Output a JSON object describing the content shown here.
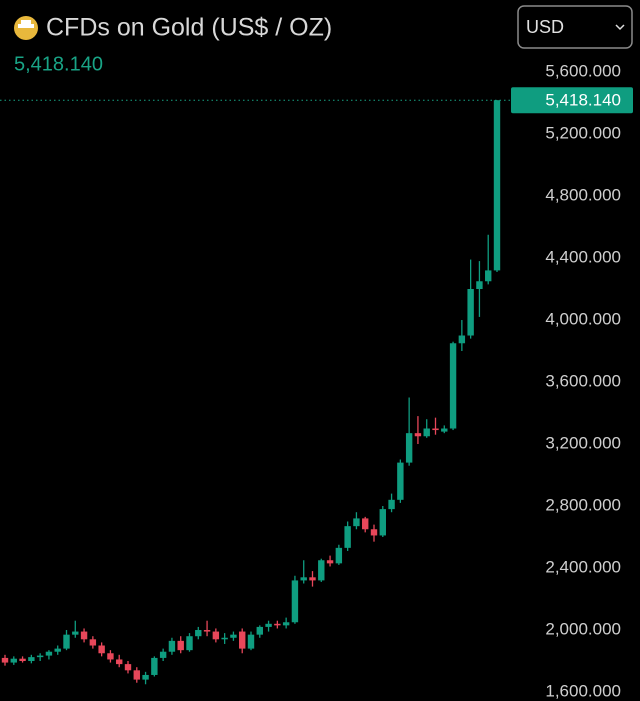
{
  "chart_data": {
    "type": "candlestick",
    "title": "CFDs on Gold (US$ / OZ)",
    "currency": "USD",
    "last_price": {
      "value": 5418.14,
      "label": "5,418.140"
    },
    "up_color": "#0f9d80",
    "down_color": "#e8475a",
    "ylim": [
      1542,
      5742
    ],
    "yticks": [
      {
        "value": 1600,
        "label": "1,600.000"
      },
      {
        "value": 2000,
        "label": "2,000.000"
      },
      {
        "value": 2400,
        "label": "2,400.000"
      },
      {
        "value": 2800,
        "label": "2,800.000"
      },
      {
        "value": 3200,
        "label": "3,200.000"
      },
      {
        "value": 3600,
        "label": "3,600.000"
      },
      {
        "value": 4000,
        "label": "4,000.000"
      },
      {
        "value": 4400,
        "label": "4,400.000"
      },
      {
        "value": 4800,
        "label": "4,800.000"
      },
      {
        "value": 5200,
        "label": "5,200.000"
      },
      {
        "value": 5600,
        "label": "5,600.000"
      }
    ],
    "open": [
      1820,
      1790,
      1815,
      1800,
      1825,
      1835,
      1860,
      1880,
      1970,
      1990,
      1940,
      1900,
      1850,
      1810,
      1780,
      1740,
      1680,
      1710,
      1820,
      1860,
      1930,
      1870,
      1960,
      2000,
      1990,
      1940,
      1950,
      1990,
      1880,
      1970,
      2020,
      2040,
      2030,
      2050,
      2320,
      2340,
      2320,
      2450,
      2430,
      2530,
      2670,
      2720,
      2650,
      2610,
      2780,
      2840,
      3080,
      3270,
      3250,
      3300,
      3280,
      3300,
      3850,
      3900,
      4200,
      4250,
      4320
    ],
    "high": [
      1840,
      1830,
      1830,
      1840,
      1850,
      1870,
      1900,
      2000,
      2060,
      2010,
      1960,
      1920,
      1870,
      1840,
      1800,
      1760,
      1730,
      1830,
      1880,
      1950,
      1960,
      1980,
      2020,
      2060,
      2010,
      1980,
      1990,
      2010,
      1990,
      2030,
      2060,
      2060,
      2080,
      2350,
      2450,
      2380,
      2460,
      2480,
      2550,
      2700,
      2760,
      2730,
      2680,
      2800,
      2880,
      3100,
      3500,
      3380,
      3360,
      3370,
      3320,
      3860,
      4000,
      4390,
      4380,
      4550,
      5418.14
    ],
    "low": [
      1770,
      1775,
      1790,
      1785,
      1800,
      1810,
      1840,
      1870,
      1950,
      1920,
      1880,
      1830,
      1790,
      1760,
      1720,
      1660,
      1650,
      1700,
      1800,
      1840,
      1850,
      1860,
      1940,
      1960,
      1920,
      1910,
      1930,
      1850,
      1870,
      1950,
      1990,
      2010,
      2010,
      2040,
      2300,
      2280,
      2310,
      2410,
      2420,
      2510,
      2650,
      2630,
      2570,
      2600,
      2760,
      2820,
      3060,
      3200,
      3240,
      3260,
      3270,
      3290,
      3800,
      3880,
      4020,
      4230,
      4310
    ],
    "close": [
      1790,
      1815,
      1800,
      1825,
      1835,
      1860,
      1880,
      1970,
      1990,
      1940,
      1900,
      1850,
      1810,
      1780,
      1740,
      1680,
      1710,
      1820,
      1860,
      1930,
      1870,
      1960,
      2000,
      1990,
      1940,
      1950,
      1970,
      1880,
      1970,
      2020,
      2040,
      2030,
      2050,
      2320,
      2340,
      2320,
      2450,
      2430,
      2530,
      2670,
      2720,
      2650,
      2610,
      2780,
      2840,
      3080,
      3270,
      3250,
      3300,
      3290,
      3300,
      3850,
      3900,
      4200,
      4250,
      4320,
      5418.14
    ]
  }
}
